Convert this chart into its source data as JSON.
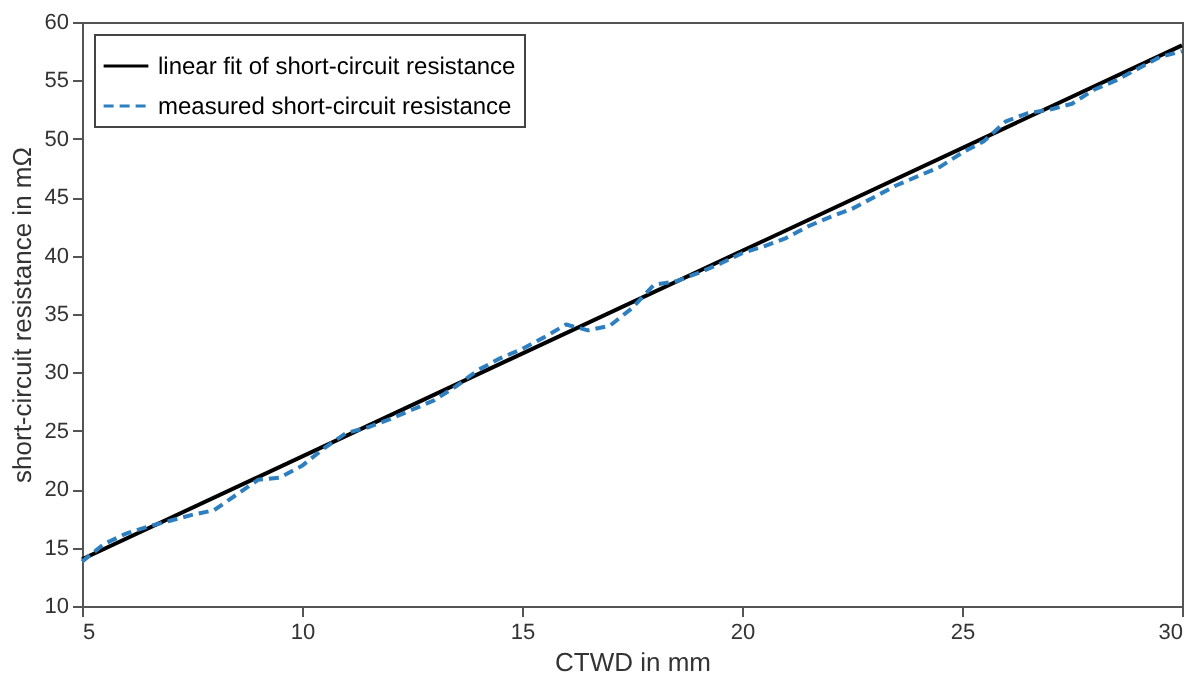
{
  "chart_data": {
    "type": "line",
    "xlabel": "CTWD in mm",
    "ylabel": "short-circuit resistance in mΩ",
    "xlim": [
      5,
      30
    ],
    "ylim": [
      10,
      60
    ],
    "xticks": [
      5,
      10,
      15,
      20,
      25,
      30
    ],
    "yticks": [
      10,
      15,
      20,
      25,
      30,
      35,
      40,
      45,
      50,
      55,
      60
    ],
    "grid": false,
    "legend": "top left",
    "series": [
      {
        "name": "linear fit of short-circuit resistance",
        "color": "#000000",
        "line_style": "solid",
        "x": [
          5,
          30
        ],
        "values": [
          14,
          58
        ]
      },
      {
        "name": "measured short-circuit resistance",
        "color": "#2e7fc0",
        "line_style": "dashed",
        "x": [
          5,
          5.5,
          6,
          6.5,
          7,
          7.5,
          8,
          8.5,
          9,
          9.5,
          10,
          10.5,
          11,
          11.5,
          12,
          12.5,
          13,
          13.5,
          14,
          14.5,
          15,
          15.5,
          16,
          16.5,
          17,
          17.5,
          18,
          18.5,
          19,
          19.5,
          20,
          20.5,
          21,
          21.5,
          22,
          22.5,
          23,
          23.5,
          24,
          24.5,
          25,
          25.5,
          26,
          26.5,
          27,
          27.5,
          28,
          28.5,
          29,
          29.5,
          30
        ],
        "values": [
          13.8,
          15.3,
          16.2,
          16.8,
          17.3,
          17.8,
          18.2,
          19.5,
          20.8,
          21,
          22,
          23.5,
          24.8,
          25.3,
          26,
          26.8,
          27.6,
          28.8,
          30.2,
          31.2,
          32,
          33,
          34.1,
          33.6,
          34,
          35.5,
          37.5,
          37.8,
          38.5,
          39.3,
          40.2,
          40.8,
          41.5,
          42.5,
          43.3,
          44,
          45,
          46,
          46.8,
          47.6,
          48.8,
          49.8,
          51.5,
          52.2,
          52.5,
          53,
          54.2,
          55,
          56,
          57,
          57.5
        ]
      }
    ]
  }
}
